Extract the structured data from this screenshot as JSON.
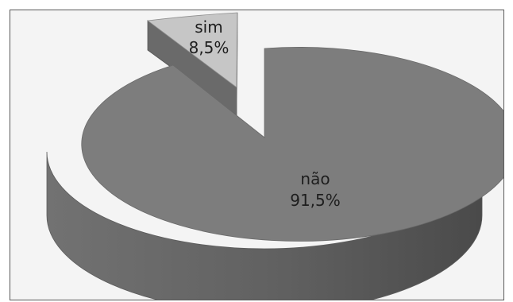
{
  "chart_data": {
    "type": "pie",
    "style": "3d-exploded",
    "title": "",
    "series": [
      {
        "label": "não",
        "value": 91.5,
        "display": "91,5%",
        "color": "#7d7d7d"
      },
      {
        "label": "sim",
        "value": 8.5,
        "display": "8,5%",
        "color": "#c6c6c6"
      }
    ],
    "legend": "none"
  }
}
